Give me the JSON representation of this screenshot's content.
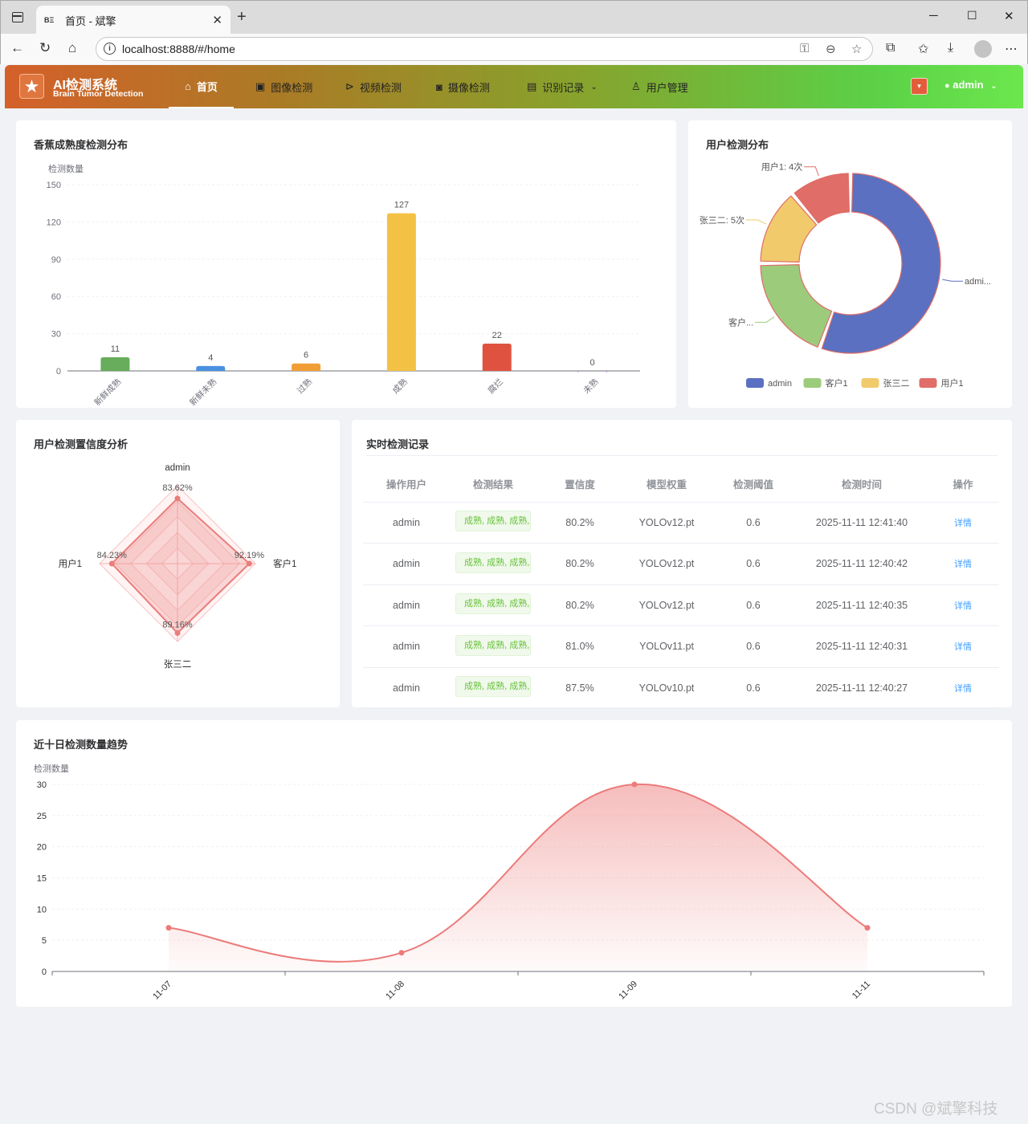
{
  "browser": {
    "tab_title": "首页 - 斌擎",
    "tab_favicon": "BΞ",
    "url": "localhost:8888/#/home"
  },
  "header": {
    "brand_title": "AI检测系统",
    "brand_subtitle": "Brain Tumor Detection",
    "menu": [
      {
        "label": "首页",
        "icon": "home-icon"
      },
      {
        "label": "图像检测",
        "icon": "image-icon"
      },
      {
        "label": "视频检测",
        "icon": "play-circle-icon"
      },
      {
        "label": "摄像检测",
        "icon": "camera-icon"
      },
      {
        "label": "识别记录",
        "icon": "document-icon"
      },
      {
        "label": "用户管理",
        "icon": "user-icon"
      }
    ],
    "user": "admin"
  },
  "ripeness_chart": {
    "title": "香蕉成熟度检测分布"
  },
  "user_pie": {
    "title": "用户检测分布"
  },
  "radar_card": {
    "title": "用户检测置信度分析"
  },
  "realtime": {
    "title": "实时检测记录",
    "columns": [
      "操作用户",
      "检测结果",
      "置信度",
      "模型权重",
      "检测阈值",
      "检测时间",
      "操作"
    ],
    "rows": [
      {
        "user": "admin",
        "result": "成熟, 成熟, 成熟,",
        "confidence": "80.2%",
        "model": "YOLOv12.pt",
        "threshold": "0.6",
        "time": "2025-11-11 12:41:40",
        "action": "详情"
      },
      {
        "user": "admin",
        "result": "成熟, 成熟, 成熟,",
        "confidence": "80.2%",
        "model": "YOLOv12.pt",
        "threshold": "0.6",
        "time": "2025-11-11 12:40:42",
        "action": "详情"
      },
      {
        "user": "admin",
        "result": "成熟, 成熟, 成熟,",
        "confidence": "80.2%",
        "model": "YOLOv12.pt",
        "threshold": "0.6",
        "time": "2025-11-11 12:40:35",
        "action": "详情"
      },
      {
        "user": "admin",
        "result": "成熟, 成熟, 成熟,",
        "confidence": "81.0%",
        "model": "YOLOv11.pt",
        "threshold": "0.6",
        "time": "2025-11-11 12:40:31",
        "action": "详情"
      },
      {
        "user": "admin",
        "result": "成熟, 成熟, 成熟,",
        "confidence": "87.5%",
        "model": "YOLOv10.pt",
        "threshold": "0.6",
        "time": "2025-11-11 12:40:27",
        "action": "详情"
      }
    ]
  },
  "trend_card": {
    "title": "近十日检测数量趋势"
  },
  "watermark": "CSDN @斌擎科技",
  "chart_data": [
    {
      "id": "ripeness",
      "type": "bar",
      "title": "香蕉成熟度检测分布",
      "ylabel": "检测数量",
      "categories": [
        "新鲜成熟",
        "新鲜未熟",
        "过熟",
        "成熟",
        "腐烂",
        "未熟"
      ],
      "values": [
        11,
        4,
        6,
        127,
        22,
        0
      ],
      "colors": [
        "#67ad5b",
        "#4a90e2",
        "#f19e38",
        "#f3c244",
        "#e05240",
        "#9b59b6"
      ],
      "yticks": [
        0,
        30,
        60,
        90,
        120,
        150
      ],
      "ylim": [
        0,
        150
      ]
    },
    {
      "id": "users",
      "type": "pie",
      "title": "用户检测分布",
      "labels": [
        "admin",
        "客户1",
        "张三二",
        "用户1"
      ],
      "values": [
        20,
        7,
        5,
        4
      ],
      "slice_labels": [
        "admi...",
        "客户...",
        "张三二: 5次",
        "用户1: 4次"
      ],
      "colors": [
        "#5b70c0",
        "#9ccb7c",
        "#f1ca6b",
        "#e06d67"
      ],
      "legend": "bottom"
    },
    {
      "id": "radar",
      "type": "radar",
      "title": "用户检测置信度分析",
      "indicators": [
        "admin",
        "客户1",
        "张三二",
        "用户1"
      ],
      "values": [
        83.62,
        92.19,
        89.16,
        84.23
      ],
      "value_labels": [
        "83.62%",
        "92.19%",
        "89.16%",
        "84.23%"
      ],
      "max": 100,
      "color": "#ea7d7a"
    },
    {
      "id": "trend",
      "type": "area",
      "title": "近十日检测数量趋势",
      "ylabel": "检测数量",
      "x": [
        "11-07",
        "11-08",
        "11-09",
        "11-11"
      ],
      "values": [
        7,
        3,
        30,
        7
      ],
      "yticks": [
        0,
        5,
        10,
        15,
        20,
        25,
        30
      ],
      "ylim": [
        0,
        30
      ],
      "color": "#ec7b7a"
    }
  ]
}
